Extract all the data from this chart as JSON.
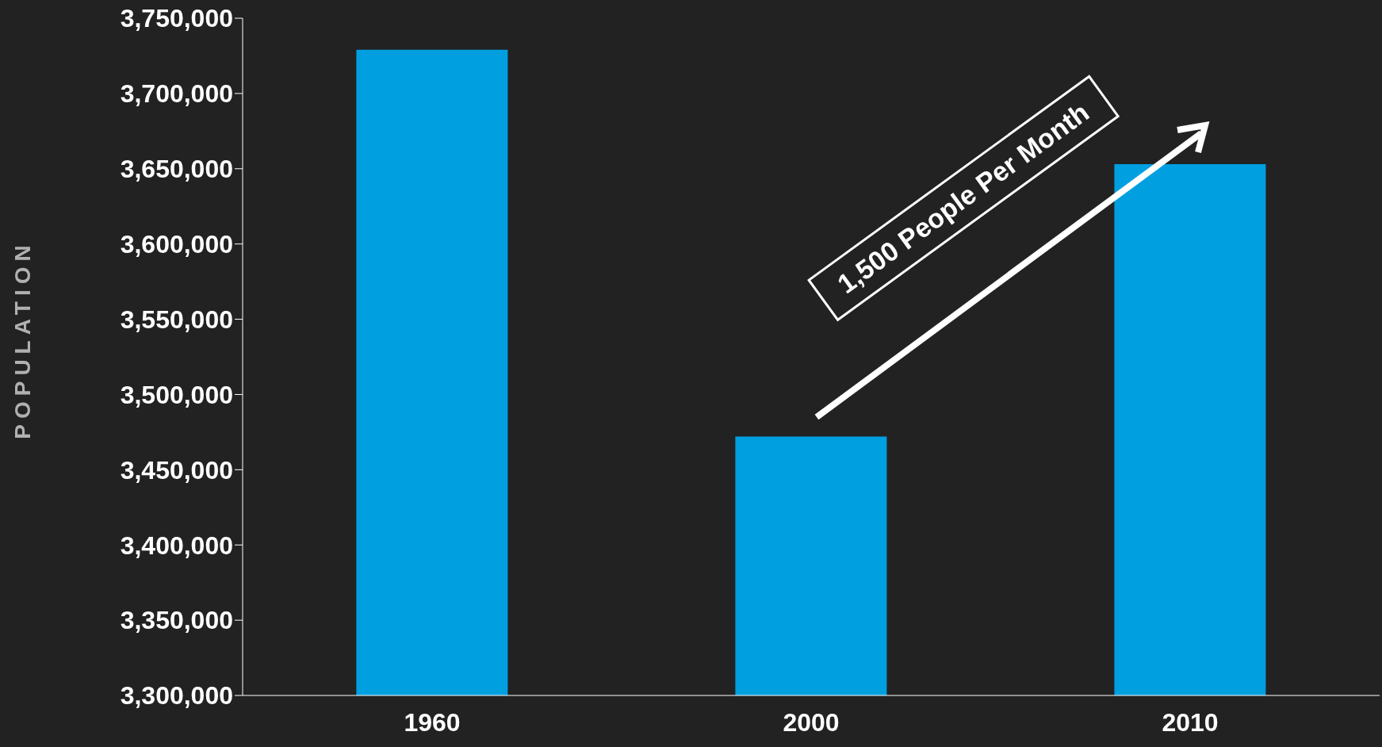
{
  "chart_data": {
    "type": "bar",
    "ylabel": "POPULATION",
    "categories": [
      "1960",
      "2000",
      "2010"
    ],
    "values": [
      3729000,
      3472000,
      3653000
    ],
    "color": "#009fe0",
    "ylim": [
      3300000,
      3750000
    ],
    "yticks": [
      {
        "value": 3300000,
        "label": "3,300,000"
      },
      {
        "value": 3350000,
        "label": "3,350,000"
      },
      {
        "value": 3400000,
        "label": "3,400,000"
      },
      {
        "value": 3450000,
        "label": "3,450,000"
      },
      {
        "value": 3500000,
        "label": "3,500,000"
      },
      {
        "value": 3550000,
        "label": "3,550,000"
      },
      {
        "value": 3600000,
        "label": "3,600,000"
      },
      {
        "value": 3650000,
        "label": "3,650,000"
      },
      {
        "value": 3700000,
        "label": "3,700,000"
      },
      {
        "value": 3750000,
        "label": "3,750,000"
      }
    ],
    "grid": false,
    "legend": false,
    "annotations": [
      "1,500 People Per Month"
    ]
  }
}
